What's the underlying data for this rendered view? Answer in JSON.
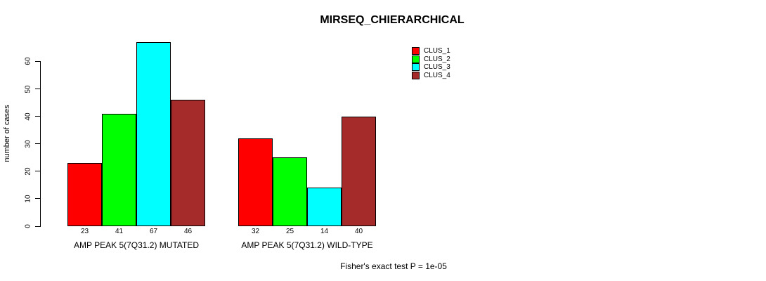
{
  "title": "MIRSEQ_CHIERARCHICAL",
  "footer": "Fisher's exact test P = 1e-05",
  "chart_data": {
    "type": "bar",
    "title": "MIRSEQ_CHIERARCHICAL",
    "categories": [
      "AMP PEAK 5(7Q31.2) MUTATED",
      "AMP PEAK 5(7Q31.2) WILD-TYPE"
    ],
    "series": [
      {
        "name": "CLUS_1",
        "color": "#FF0000",
        "values": [
          23,
          32
        ]
      },
      {
        "name": "CLUS_2",
        "color": "#00FF00",
        "values": [
          41,
          25
        ]
      },
      {
        "name": "CLUS_3",
        "color": "#00FFFF",
        "values": [
          67,
          14
        ]
      },
      {
        "name": "CLUS_4",
        "color": "#A52A2A",
        "values": [
          46,
          40
        ]
      }
    ],
    "xlabel": "",
    "ylabel": "number of cases",
    "yticks": [
      0,
      10,
      20,
      30,
      40,
      50,
      60
    ],
    "ylim": [
      0,
      68
    ],
    "bar_value_labels_shown": true,
    "grid": false,
    "legend_position": "top-right",
    "annotation": "Fisher's exact test P = 1e-05"
  }
}
